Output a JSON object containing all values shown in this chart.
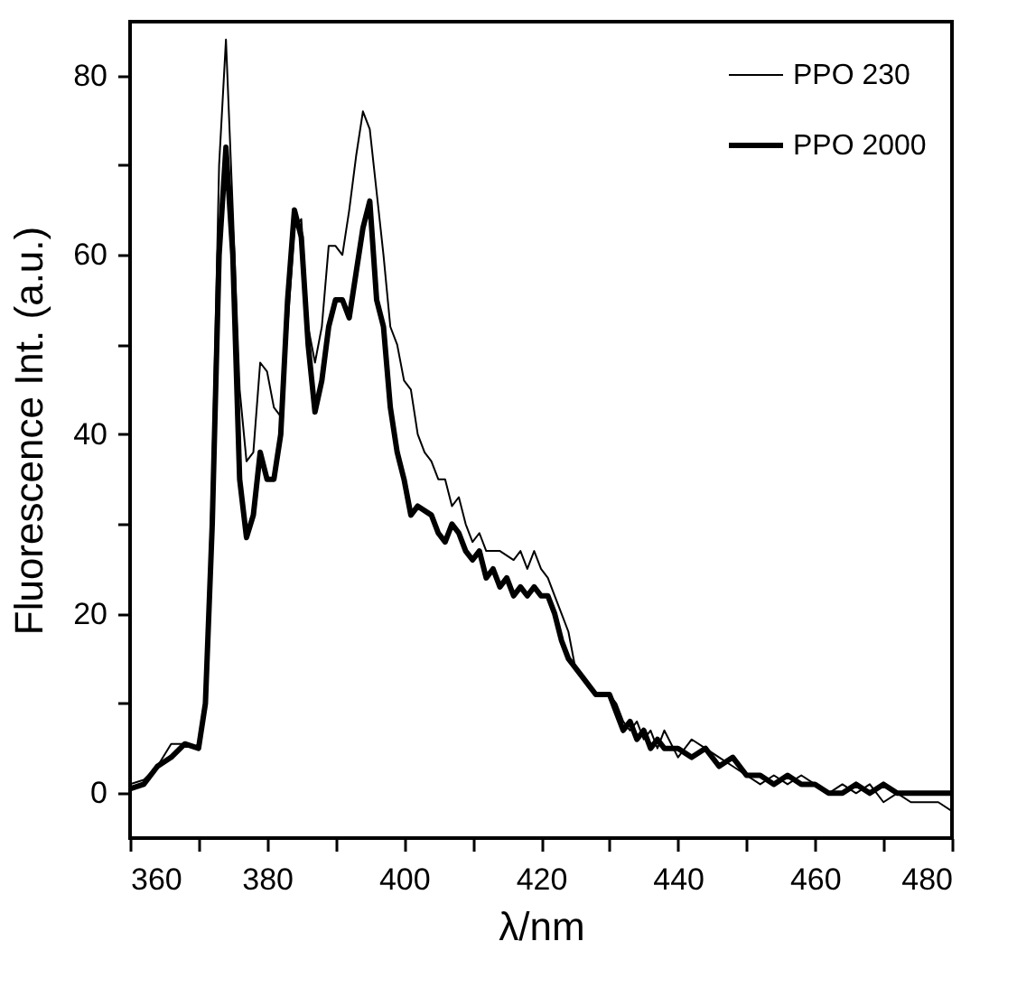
{
  "chart_data": {
    "type": "line",
    "xlabel": "λ/nm",
    "ylabel": "Fluorescence Int. (a.u.)",
    "xlim": [
      360,
      480
    ],
    "ylim": [
      -5,
      86
    ],
    "xticks": [
      360,
      {
        "value": 370,
        "label": null
      },
      380,
      {
        "value": 390,
        "label": null
      },
      400,
      {
        "value": 410,
        "label": null
      },
      420,
      {
        "value": 430,
        "label": null
      },
      440,
      {
        "value": 450,
        "label": null
      },
      460,
      {
        "value": 470,
        "label": null
      },
      480
    ],
    "yticks": [
      0,
      {
        "value": 10,
        "label": null
      },
      20,
      {
        "value": 30,
        "label": null
      },
      40,
      {
        "value": 50,
        "label": null
      },
      60,
      {
        "value": 70,
        "label": null
      },
      80
    ],
    "grid": false,
    "legend": "top right",
    "marker": "none",
    "line_style": "solid",
    "series": [
      {
        "name": "PPO 230",
        "color": "#000000",
        "x": [
          360,
          362,
          364,
          366,
          368,
          370,
          371,
          372,
          373,
          374,
          375,
          376,
          377,
          378,
          379,
          380,
          381,
          382,
          383,
          384,
          385,
          386,
          387,
          388,
          389,
          390,
          391,
          392,
          393,
          394,
          395,
          396,
          397,
          398,
          399,
          400,
          401,
          402,
          403,
          404,
          405,
          406,
          407,
          408,
          409,
          410,
          411,
          412,
          414,
          416,
          417,
          418,
          419,
          420,
          421,
          422,
          423,
          424,
          425,
          426,
          428,
          430,
          431,
          432,
          433,
          434,
          435,
          436,
          437,
          438,
          440,
          442,
          444,
          446,
          448,
          450,
          452,
          454,
          456,
          458,
          460,
          462,
          464,
          466,
          468,
          470,
          472,
          474,
          476,
          478,
          480
        ],
        "values": [
          1,
          1.5,
          3,
          5.5,
          5.5,
          5,
          10,
          35,
          70,
          84,
          65,
          45,
          37,
          38,
          48,
          47,
          43,
          42,
          52,
          63,
          64,
          52,
          48,
          52,
          61,
          61,
          60,
          65,
          71,
          76,
          74,
          67,
          60,
          52,
          50,
          46,
          45,
          40,
          38,
          37,
          35,
          35,
          32,
          33,
          30,
          28,
          29,
          27,
          27,
          26,
          27,
          25,
          27,
          25,
          24,
          22,
          20,
          18,
          14,
          13,
          11,
          11,
          10,
          8,
          7,
          8,
          6,
          7,
          5,
          7,
          4,
          6,
          5,
          4,
          3,
          2,
          1,
          2,
          1,
          2,
          1,
          0,
          1,
          0,
          1,
          -1,
          0,
          -1,
          -1,
          -1,
          -2
        ]
      },
      {
        "name": "PPO 2000",
        "color": "#000000",
        "x": [
          360,
          362,
          364,
          366,
          368,
          370,
          371,
          372,
          373,
          374,
          375,
          376,
          377,
          378,
          379,
          380,
          381,
          382,
          383,
          384,
          385,
          386,
          387,
          388,
          389,
          390,
          391,
          392,
          393,
          394,
          395,
          396,
          397,
          398,
          399,
          400,
          401,
          402,
          404,
          405,
          406,
          407,
          408,
          409,
          410,
          411,
          412,
          413,
          414,
          415,
          416,
          417,
          418,
          419,
          420,
          421,
          422,
          423,
          424,
          426,
          428,
          430,
          431,
          432,
          433,
          434,
          435,
          436,
          437,
          438,
          440,
          442,
          444,
          446,
          448,
          450,
          452,
          454,
          456,
          458,
          460,
          462,
          464,
          466,
          468,
          470,
          472,
          474,
          476,
          478,
          480
        ],
        "values": [
          0.5,
          1,
          3,
          4,
          5.5,
          5,
          10,
          30,
          60,
          72,
          60,
          35,
          28.5,
          31,
          38,
          35,
          35,
          40,
          55,
          65,
          62,
          50,
          42.5,
          46,
          52,
          55,
          55,
          53,
          58,
          63,
          66,
          55,
          52,
          43,
          38,
          35,
          31,
          32,
          31,
          29,
          28,
          30,
          29,
          27,
          26,
          27,
          24,
          25,
          23,
          24,
          22,
          23,
          22,
          23,
          22,
          22,
          20,
          17,
          15,
          13,
          11,
          11,
          9,
          7,
          8,
          6,
          7,
          5,
          6,
          5,
          5,
          4,
          5,
          3,
          4,
          2,
          2,
          1,
          2,
          1,
          1,
          0,
          0,
          1,
          0,
          1,
          0,
          0,
          0,
          0,
          0
        ]
      }
    ]
  }
}
